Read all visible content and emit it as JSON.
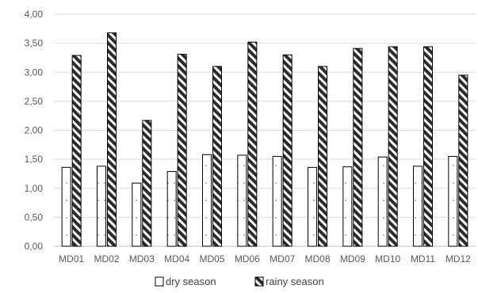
{
  "chart_data": {
    "type": "bar",
    "categories": [
      "MD01",
      "MD02",
      "MD03",
      "MD04",
      "MD05",
      "MD06",
      "MD07",
      "MD08",
      "MD09",
      "MD10",
      "MD11",
      "MD12"
    ],
    "series": [
      {
        "name": "dry season",
        "values": [
          1.36,
          1.38,
          1.09,
          1.29,
          1.58,
          1.57,
          1.55,
          1.36,
          1.37,
          1.54,
          1.38,
          1.55
        ],
        "fill": "dotted-white"
      },
      {
        "name": "rainy season",
        "values": [
          3.29,
          3.68,
          2.17,
          3.31,
          3.1,
          3.52,
          3.3,
          3.1,
          3.41,
          3.44,
          3.44,
          2.95
        ],
        "fill": "diagonal-hatch"
      }
    ],
    "yticks": [
      "0,00",
      "0,50",
      "1,00",
      "1,50",
      "2,00",
      "2,50",
      "3,00",
      "3,50",
      "4,00"
    ],
    "ylim": [
      0,
      4
    ],
    "grid": true,
    "legend_position": "bottom",
    "colors": {
      "bar_stroke": "#000000",
      "hatch_dark": "#2b2b2b",
      "grid": "#d9d9d9",
      "text": "#595959"
    }
  }
}
